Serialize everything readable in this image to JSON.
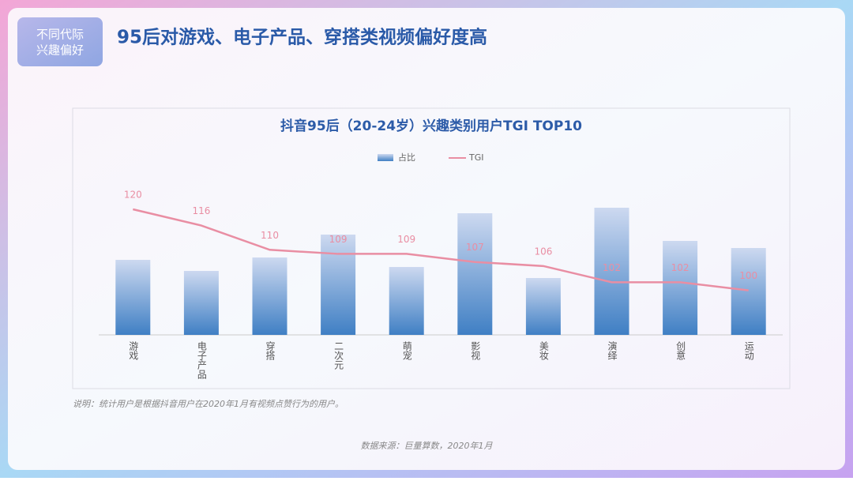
{
  "header": {
    "badge": [
      "不同代际",
      "兴趣偏好"
    ],
    "title": "95后对游戏、电子产品、穿搭类视频偏好度高"
  },
  "chart_data": {
    "type": "bar",
    "title": "抖音95后（20-24岁）兴趣类别用户TGI TOP10",
    "categories": [
      "游戏",
      "电子产品",
      "穿搭",
      "二次元",
      "萌宠",
      "影视",
      "美妆",
      "演绎",
      "创意",
      "运动"
    ],
    "series": [
      {
        "name": "占比",
        "type": "bar",
        "color": "#3f7fc4",
        "values": [
          95,
          81,
          98,
          127,
          86,
          154,
          72,
          161,
          119,
          110
        ]
      },
      {
        "name": "TGI",
        "type": "line",
        "axis": "y2",
        "color": "#e98ea3",
        "values": [
          120,
          116,
          110,
          109,
          109,
          107,
          106,
          102,
          102,
          100
        ]
      }
    ],
    "ylim": [
      0,
      200
    ],
    "y2lim": [
      89,
      128
    ]
  },
  "footer": {
    "note": "说明：统计用户是根据抖音用户在2020年1月有视频点赞行为的用户。",
    "source": "数据来源：巨量算数，2020年1月"
  }
}
